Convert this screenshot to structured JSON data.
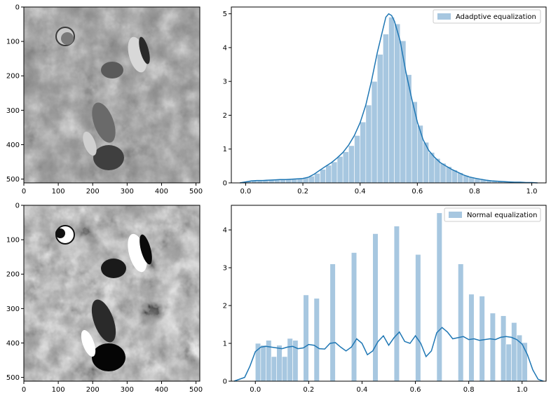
{
  "colors": {
    "bar": "#a7c7e0",
    "line": "#1f77b4",
    "axis": "#000000"
  },
  "chart_data": [
    {
      "type": "image",
      "subject": "lunar surface grayscale image (adaptive equalization)",
      "xlim": [
        0,
        511
      ],
      "ylim": [
        511,
        0
      ],
      "xticks": [
        0,
        100,
        200,
        300,
        400,
        500
      ],
      "yticks": [
        0,
        100,
        200,
        300,
        400,
        500
      ],
      "title": "",
      "xlabel": "",
      "ylabel": ""
    },
    {
      "type": "bar",
      "legend": "Adadptive equalization",
      "legend_position": "top-right",
      "xlim": [
        -0.05,
        1.05
      ],
      "ylim": [
        0,
        5.2
      ],
      "xticks": [
        0.0,
        0.2,
        0.4,
        0.6,
        0.8,
        1.0
      ],
      "xtick_labels": [
        "0.0",
        "0.2",
        "0.4",
        "0.6",
        "0.8",
        "1.0"
      ],
      "yticks": [
        0,
        1,
        2,
        3,
        4,
        5
      ],
      "bin_width": 0.02,
      "bins": [
        [
          0.0,
          0.05
        ],
        [
          0.02,
          0.06
        ],
        [
          0.04,
          0.06
        ],
        [
          0.06,
          0.07
        ],
        [
          0.08,
          0.08
        ],
        [
          0.1,
          0.09
        ],
        [
          0.12,
          0.1
        ],
        [
          0.14,
          0.11
        ],
        [
          0.16,
          0.12
        ],
        [
          0.18,
          0.14
        ],
        [
          0.2,
          0.16
        ],
        [
          0.22,
          0.2
        ],
        [
          0.24,
          0.28
        ],
        [
          0.26,
          0.4
        ],
        [
          0.28,
          0.52
        ],
        [
          0.3,
          0.62
        ],
        [
          0.32,
          0.78
        ],
        [
          0.34,
          0.92
        ],
        [
          0.36,
          1.1
        ],
        [
          0.38,
          1.4
        ],
        [
          0.4,
          1.8
        ],
        [
          0.42,
          2.3
        ],
        [
          0.44,
          3.0
        ],
        [
          0.46,
          3.8
        ],
        [
          0.48,
          4.4
        ],
        [
          0.5,
          4.9
        ],
        [
          0.52,
          4.7
        ],
        [
          0.54,
          4.2
        ],
        [
          0.56,
          3.2
        ],
        [
          0.58,
          2.4
        ],
        [
          0.6,
          1.7
        ],
        [
          0.62,
          1.2
        ],
        [
          0.64,
          0.9
        ],
        [
          0.66,
          0.72
        ],
        [
          0.68,
          0.58
        ],
        [
          0.7,
          0.48
        ],
        [
          0.72,
          0.38
        ],
        [
          0.74,
          0.3
        ],
        [
          0.76,
          0.22
        ],
        [
          0.78,
          0.17
        ],
        [
          0.8,
          0.13
        ],
        [
          0.82,
          0.1
        ],
        [
          0.84,
          0.08
        ],
        [
          0.86,
          0.06
        ],
        [
          0.88,
          0.05
        ],
        [
          0.9,
          0.04
        ],
        [
          0.92,
          0.03
        ],
        [
          0.94,
          0.02
        ],
        [
          0.96,
          0.01
        ],
        [
          0.98,
          0.01
        ]
      ],
      "kde": [
        [
          -0.02,
          0.0
        ],
        [
          0.0,
          0.03
        ],
        [
          0.02,
          0.06
        ],
        [
          0.04,
          0.07
        ],
        [
          0.06,
          0.07
        ],
        [
          0.08,
          0.08
        ],
        [
          0.1,
          0.09
        ],
        [
          0.12,
          0.1
        ],
        [
          0.14,
          0.1
        ],
        [
          0.16,
          0.11
        ],
        [
          0.18,
          0.12
        ],
        [
          0.2,
          0.13
        ],
        [
          0.22,
          0.17
        ],
        [
          0.24,
          0.26
        ],
        [
          0.26,
          0.38
        ],
        [
          0.28,
          0.49
        ],
        [
          0.3,
          0.6
        ],
        [
          0.32,
          0.74
        ],
        [
          0.34,
          0.9
        ],
        [
          0.36,
          1.12
        ],
        [
          0.38,
          1.4
        ],
        [
          0.4,
          1.78
        ],
        [
          0.42,
          2.3
        ],
        [
          0.44,
          3.02
        ],
        [
          0.46,
          3.85
        ],
        [
          0.48,
          4.55
        ],
        [
          0.49,
          4.9
        ],
        [
          0.5,
          5.0
        ],
        [
          0.51,
          4.95
        ],
        [
          0.52,
          4.78
        ],
        [
          0.54,
          4.2
        ],
        [
          0.56,
          3.28
        ],
        [
          0.58,
          2.5
        ],
        [
          0.6,
          1.8
        ],
        [
          0.62,
          1.28
        ],
        [
          0.64,
          0.96
        ],
        [
          0.66,
          0.76
        ],
        [
          0.68,
          0.6
        ],
        [
          0.7,
          0.5
        ],
        [
          0.72,
          0.4
        ],
        [
          0.74,
          0.32
        ],
        [
          0.76,
          0.24
        ],
        [
          0.78,
          0.18
        ],
        [
          0.8,
          0.14
        ],
        [
          0.82,
          0.11
        ],
        [
          0.84,
          0.08
        ],
        [
          0.86,
          0.06
        ],
        [
          0.88,
          0.05
        ],
        [
          0.9,
          0.04
        ],
        [
          0.92,
          0.03
        ],
        [
          0.94,
          0.02
        ],
        [
          0.96,
          0.02
        ],
        [
          0.98,
          0.01
        ],
        [
          1.0,
          0.01
        ],
        [
          1.02,
          0.0
        ]
      ],
      "title": "",
      "xlabel": "",
      "ylabel": ""
    },
    {
      "type": "image",
      "subject": "lunar surface grayscale image (normal equalization)",
      "xlim": [
        0,
        511
      ],
      "ylim": [
        511,
        0
      ],
      "xticks": [
        0,
        100,
        200,
        300,
        400,
        500
      ],
      "yticks": [
        0,
        100,
        200,
        300,
        400,
        500
      ],
      "title": "",
      "xlabel": "",
      "ylabel": ""
    },
    {
      "type": "bar",
      "legend": "Normal equalization",
      "legend_position": "top-right",
      "xlim": [
        -0.09,
        1.09
      ],
      "ylim": [
        0,
        4.65
      ],
      "xticks": [
        0.0,
        0.2,
        0.4,
        0.6,
        0.8,
        1.0
      ],
      "xtick_labels": [
        "0.0",
        "0.2",
        "0.4",
        "0.6",
        "0.8",
        "1.0"
      ],
      "yticks": [
        0,
        1,
        2,
        3,
        4
      ],
      "bin_width": 0.02,
      "bins": [
        [
          0.0,
          1.0
        ],
        [
          0.02,
          0.95
        ],
        [
          0.04,
          1.08
        ],
        [
          0.06,
          0.65
        ],
        [
          0.08,
          0.95
        ],
        [
          0.1,
          0.65
        ],
        [
          0.12,
          1.13
        ],
        [
          0.14,
          1.08
        ],
        [
          0.18,
          2.28
        ],
        [
          0.22,
          2.19
        ],
        [
          0.28,
          3.1
        ],
        [
          0.36,
          3.4
        ],
        [
          0.44,
          3.9
        ],
        [
          0.52,
          4.1
        ],
        [
          0.6,
          3.35
        ],
        [
          0.68,
          4.45
        ],
        [
          0.76,
          3.1
        ],
        [
          0.8,
          2.3
        ],
        [
          0.84,
          2.25
        ],
        [
          0.88,
          1.8
        ],
        [
          0.92,
          1.73
        ],
        [
          0.94,
          0.98
        ],
        [
          0.96,
          1.55
        ],
        [
          0.98,
          1.22
        ],
        [
          1.0,
          1.02
        ]
      ],
      "kde": [
        [
          -0.08,
          0.0
        ],
        [
          -0.04,
          0.1
        ],
        [
          -0.02,
          0.4
        ],
        [
          0.0,
          0.78
        ],
        [
          0.02,
          0.9
        ],
        [
          0.04,
          0.92
        ],
        [
          0.06,
          0.9
        ],
        [
          0.08,
          0.88
        ],
        [
          0.1,
          0.86
        ],
        [
          0.12,
          0.9
        ],
        [
          0.14,
          0.92
        ],
        [
          0.16,
          0.86
        ],
        [
          0.18,
          0.88
        ],
        [
          0.2,
          0.97
        ],
        [
          0.22,
          0.95
        ],
        [
          0.24,
          0.86
        ],
        [
          0.26,
          0.85
        ],
        [
          0.28,
          1.0
        ],
        [
          0.3,
          1.02
        ],
        [
          0.32,
          0.9
        ],
        [
          0.34,
          0.8
        ],
        [
          0.36,
          0.9
        ],
        [
          0.38,
          1.12
        ],
        [
          0.4,
          1.0
        ],
        [
          0.42,
          0.7
        ],
        [
          0.44,
          0.8
        ],
        [
          0.46,
          1.05
        ],
        [
          0.48,
          1.2
        ],
        [
          0.5,
          0.95
        ],
        [
          0.52,
          1.15
        ],
        [
          0.54,
          1.3
        ],
        [
          0.56,
          1.05
        ],
        [
          0.58,
          1.0
        ],
        [
          0.6,
          1.2
        ],
        [
          0.62,
          1.0
        ],
        [
          0.64,
          0.65
        ],
        [
          0.66,
          0.8
        ],
        [
          0.68,
          1.28
        ],
        [
          0.7,
          1.42
        ],
        [
          0.72,
          1.3
        ],
        [
          0.74,
          1.12
        ],
        [
          0.76,
          1.15
        ],
        [
          0.78,
          1.18
        ],
        [
          0.8,
          1.1
        ],
        [
          0.82,
          1.12
        ],
        [
          0.84,
          1.08
        ],
        [
          0.86,
          1.1
        ],
        [
          0.88,
          1.12
        ],
        [
          0.9,
          1.1
        ],
        [
          0.92,
          1.16
        ],
        [
          0.94,
          1.18
        ],
        [
          0.96,
          1.16
        ],
        [
          0.98,
          1.1
        ],
        [
          1.0,
          0.98
        ],
        [
          1.02,
          0.7
        ],
        [
          1.04,
          0.3
        ],
        [
          1.06,
          0.05
        ],
        [
          1.08,
          0.0
        ]
      ],
      "title": "",
      "xlabel": "",
      "ylabel": ""
    }
  ]
}
